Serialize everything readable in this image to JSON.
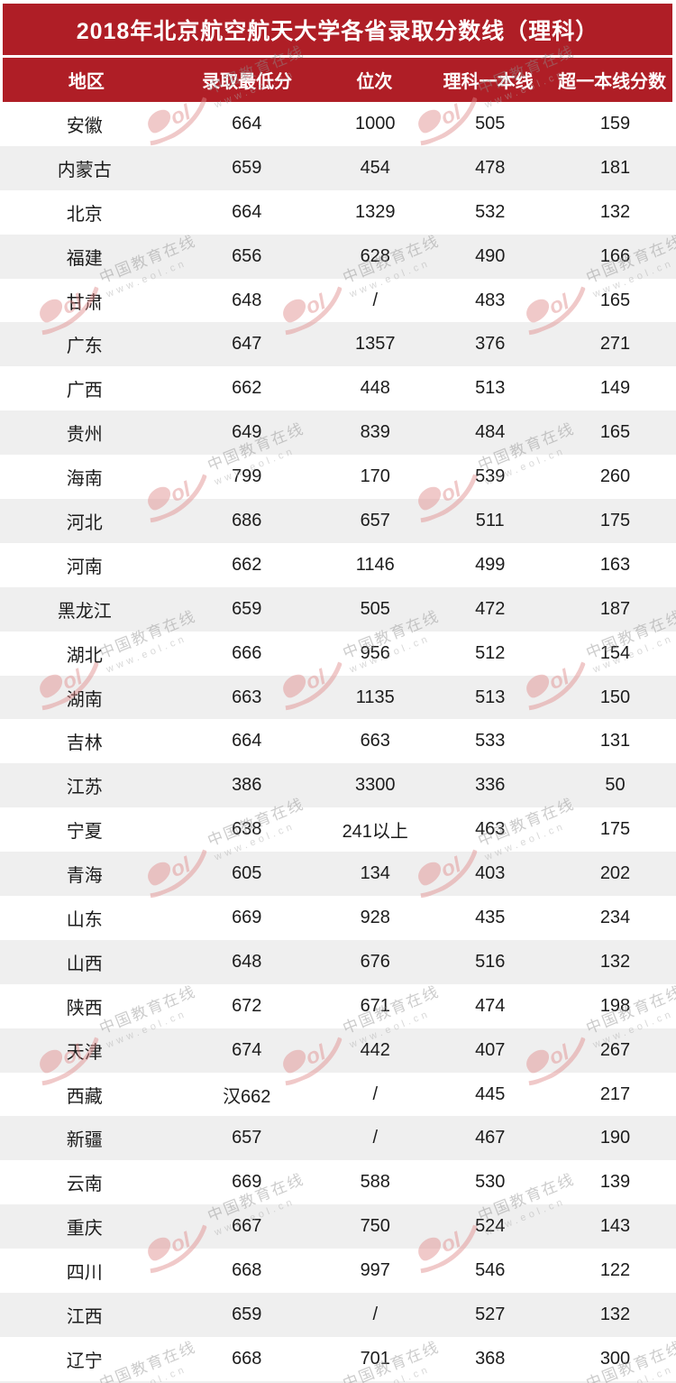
{
  "chart_data": {
    "type": "table",
    "title": "2018年北京航空航天大学各省录取分数线（理科）",
    "columns": [
      "地区",
      "录取最低分",
      "位次",
      "理科一本线",
      "超一本线分数"
    ],
    "rows": [
      [
        "安徽",
        "664",
        "1000",
        "505",
        "159"
      ],
      [
        "内蒙古",
        "659",
        "454",
        "478",
        "181"
      ],
      [
        "北京",
        "664",
        "1329",
        "532",
        "132"
      ],
      [
        "福建",
        "656",
        "628",
        "490",
        "166"
      ],
      [
        "甘肃",
        "648",
        "/",
        "483",
        "165"
      ],
      [
        "广东",
        "647",
        "1357",
        "376",
        "271"
      ],
      [
        "广西",
        "662",
        "448",
        "513",
        "149"
      ],
      [
        "贵州",
        "649",
        "839",
        "484",
        "165"
      ],
      [
        "海南",
        "799",
        "170",
        "539",
        "260"
      ],
      [
        "河北",
        "686",
        "657",
        "511",
        "175"
      ],
      [
        "河南",
        "662",
        "1146",
        "499",
        "163"
      ],
      [
        "黑龙江",
        "659",
        "505",
        "472",
        "187"
      ],
      [
        "湖北",
        "666",
        "956",
        "512",
        "154"
      ],
      [
        "湖南",
        "663",
        "1135",
        "513",
        "150"
      ],
      [
        "吉林",
        "664",
        "663",
        "533",
        "131"
      ],
      [
        "江苏",
        "386",
        "3300",
        "336",
        "50"
      ],
      [
        "宁夏",
        "638",
        "241以上",
        "463",
        "175"
      ],
      [
        "青海",
        "605",
        "134",
        "403",
        "202"
      ],
      [
        "山东",
        "669",
        "928",
        "435",
        "234"
      ],
      [
        "山西",
        "648",
        "676",
        "516",
        "132"
      ],
      [
        "陕西",
        "672",
        "671",
        "474",
        "198"
      ],
      [
        "天津",
        "674",
        "442",
        "407",
        "267"
      ],
      [
        "西藏",
        "汉662",
        "/",
        "445",
        "217"
      ],
      [
        "新疆",
        "657",
        "/",
        "467",
        "190"
      ],
      [
        "云南",
        "669",
        "588",
        "530",
        "139"
      ],
      [
        "重庆",
        "667",
        "750",
        "524",
        "143"
      ],
      [
        "四川",
        "668",
        "997",
        "546",
        "122"
      ],
      [
        "江西",
        "659",
        "/",
        "527",
        "132"
      ],
      [
        "辽宁",
        "668",
        "701",
        "368",
        "300"
      ]
    ],
    "layout_hints": {
      "header_background": "#AF1E26",
      "stripe_background": "#EFEFEF",
      "header_text_color": "#FFFFFF",
      "cell_text_color": "#1C1C1C",
      "zebra": "odd rows white, even rows gray"
    }
  },
  "watermark": {
    "brand": "中国教育在线",
    "url": "www.eol.cn",
    "logo_text": "eol",
    "logo_color": "#E08A8A"
  }
}
